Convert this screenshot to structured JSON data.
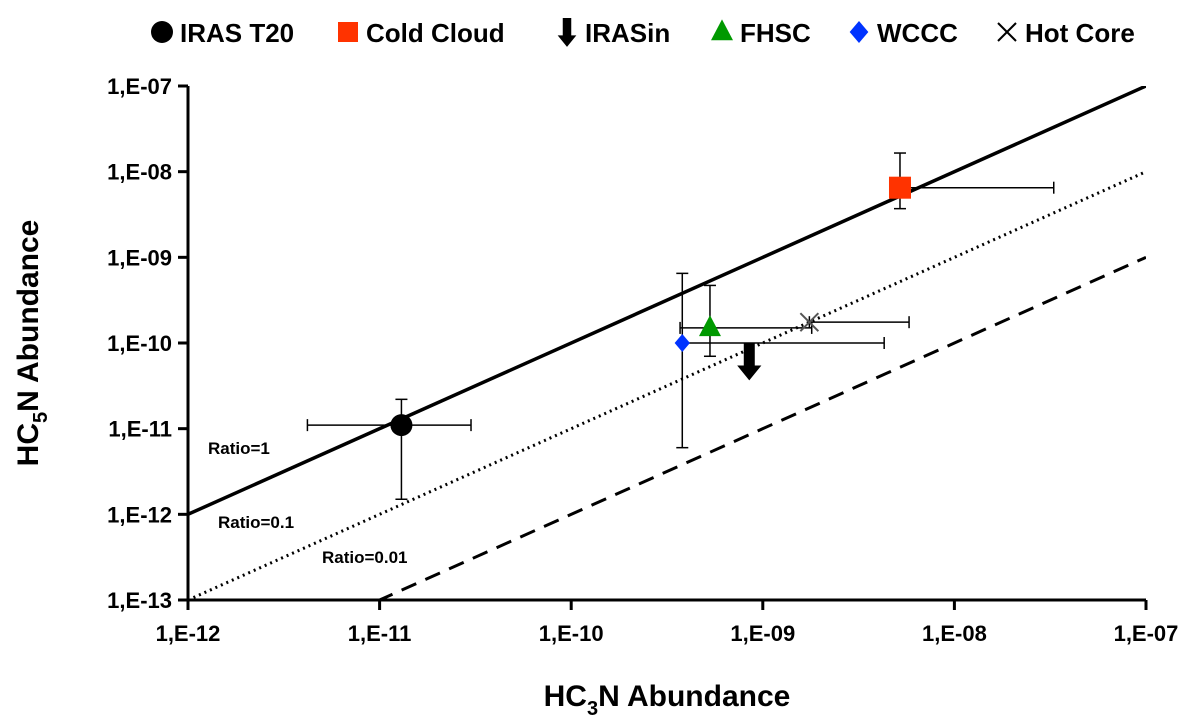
{
  "chart_data": {
    "type": "scatter",
    "xscale": "log",
    "yscale": "log",
    "xlim": [
      1e-12,
      1e-07
    ],
    "ylim": [
      1e-13,
      1e-07
    ],
    "xlabel": {
      "prefix": "HC",
      "sub": "3",
      "suffix": "N Abundance"
    },
    "ylabel": {
      "prefix": "HC",
      "sub": "5",
      "suffix": "N Abundance"
    },
    "x_tick_labels": [
      "1,E-12",
      "1,E-11",
      "1,E-10",
      "1,E-09",
      "1,E-08",
      "1,E-07"
    ],
    "y_tick_labels": [
      "1,E-13",
      "1,E-12",
      "1,E-11",
      "1,E-10",
      "1,E-09",
      "1,E-08",
      "1,E-07"
    ],
    "grid": false,
    "legend_position": "top",
    "legend": [
      {
        "label": "IRAS T20",
        "marker": "circle",
        "color": "#000000"
      },
      {
        "label": "Cold Cloud",
        "marker": "square",
        "color": "#ff3300"
      },
      {
        "label": "IRASin",
        "marker": "arrow-down",
        "color": "#000000"
      },
      {
        "label": "FHSC",
        "marker": "triangle",
        "color": "#009900"
      },
      {
        "label": "WCCC",
        "marker": "diamond",
        "color": "#0033ff"
      },
      {
        "label": "Hot Core",
        "marker": "cross",
        "color": "#000000"
      }
    ],
    "reference_lines": [
      {
        "label": "Ratio=1",
        "ratio": 1,
        "style": "solid"
      },
      {
        "label": "Ratio=0.1",
        "ratio": 0.1,
        "style": "dotted"
      },
      {
        "label": "Ratio=0.01",
        "ratio": 0.01,
        "style": "dashed"
      }
    ],
    "points": [
      {
        "name": "IRAS T20",
        "x": 1.3e-11,
        "y": 1.1e-11,
        "xerr": [
          4.2e-12,
          3e-11
        ],
        "yerr": [
          1.5e-12,
          2.2e-11
        ],
        "marker": "circle",
        "color": "#000000"
      },
      {
        "name": "Cold Cloud",
        "x": 5.2e-09,
        "y": 6.5e-09,
        "xerr": [
          5.2e-09,
          3.3e-08
        ],
        "yerr": [
          3.7e-09,
          1.65e-08
        ],
        "marker": "square",
        "color": "#ff3300"
      },
      {
        "name": "IRASin",
        "x": 8.5e-10,
        "y": 1e-10,
        "upper_limit": true,
        "marker": "arrow-down",
        "color": "#000000"
      },
      {
        "name": "FHSC",
        "x": 5.3e-10,
        "y": 1.5e-10,
        "xerr": [
          3.7e-10,
          1.8e-09
        ],
        "yerr": [
          7e-11,
          4.7e-10
        ],
        "marker": "triangle",
        "color": "#009900"
      },
      {
        "name": "WCCC",
        "x": 3.8e-10,
        "y": 1e-10,
        "xerr": [
          3.8e-10,
          4.3e-09
        ],
        "yerr": [
          6e-12,
          6.5e-10
        ],
        "marker": "diamond",
        "color": "#0033ff"
      },
      {
        "name": "Hot Core",
        "x": 1.75e-09,
        "y": 1.75e-10,
        "xerr": [
          1.75e-09,
          5.8e-09
        ],
        "yerr": null,
        "marker": "cross",
        "color": "#000000"
      }
    ]
  }
}
